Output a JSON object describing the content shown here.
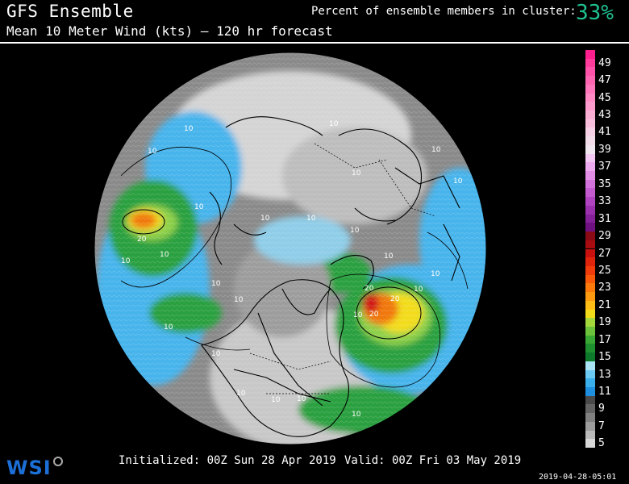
{
  "header": {
    "title": "GFS Ensemble",
    "subtitle": "Mean 10 Meter Wind (kts) — 120 hr forecast",
    "cluster_label": "Percent of ensemble members in cluster:",
    "cluster_value": "33%"
  },
  "footer": {
    "initialized": "Initialized: 00Z Sun 28 Apr 2019",
    "valid": "Valid: 00Z Fri 03 May 2019",
    "logo": "WSI",
    "timestamp": "2019-04-28-05:01"
  },
  "legend": {
    "unit": "kts",
    "steps": [
      {
        "value": 50,
        "label": "",
        "color": "#ff1f8e"
      },
      {
        "value": 49,
        "label": "49",
        "color": "#ff3c9c"
      },
      {
        "value": 48,
        "label": "",
        "color": "#ff52a8"
      },
      {
        "value": 47,
        "label": "47",
        "color": "#ff66b2"
      },
      {
        "value": 46,
        "label": "",
        "color": "#ff78bc"
      },
      {
        "value": 45,
        "label": "45",
        "color": "#ff8ac4"
      },
      {
        "value": 44,
        "label": "",
        "color": "#fd9ccc"
      },
      {
        "value": 43,
        "label": "43",
        "color": "#fbaed4"
      },
      {
        "value": 42,
        "label": "",
        "color": "#f8bfdc"
      },
      {
        "value": 41,
        "label": "41",
        "color": "#f6d0e4"
      },
      {
        "value": 40,
        "label": "",
        "color": "#f2dcea"
      },
      {
        "value": 39,
        "label": "39",
        "color": "#f0e6f0"
      },
      {
        "value": 38,
        "label": "",
        "color": "#f3c8f3"
      },
      {
        "value": 37,
        "label": "37",
        "color": "#eeaaee"
      },
      {
        "value": 36,
        "label": "",
        "color": "#e38ee6"
      },
      {
        "value": 35,
        "label": "35",
        "color": "#d472dc"
      },
      {
        "value": 34,
        "label": "",
        "color": "#c45ad0"
      },
      {
        "value": 33,
        "label": "33",
        "color": "#b044c0"
      },
      {
        "value": 32,
        "label": "",
        "color": "#9a30ac"
      },
      {
        "value": 31,
        "label": "31",
        "color": "#842098"
      },
      {
        "value": 30,
        "label": "",
        "color": "#6e1282"
      },
      {
        "value": 29,
        "label": "29",
        "color": "#8a0a16"
      },
      {
        "value": 28,
        "label": "",
        "color": "#a80c10"
      },
      {
        "value": 27,
        "label": "27",
        "color": "#c8100e"
      },
      {
        "value": 26,
        "label": "",
        "color": "#e0240c"
      },
      {
        "value": 25,
        "label": "25",
        "color": "#f03c0a"
      },
      {
        "value": 24,
        "label": "",
        "color": "#f85a0a"
      },
      {
        "value": 23,
        "label": "23",
        "color": "#fc7a0c"
      },
      {
        "value": 22,
        "label": "",
        "color": "#fe9a10"
      },
      {
        "value": 21,
        "label": "21",
        "color": "#ffbc14"
      },
      {
        "value": 20,
        "label": "",
        "color": "#f2dc1a"
      },
      {
        "value": 19,
        "label": "19",
        "color": "#a4d83a"
      },
      {
        "value": 18,
        "label": "",
        "color": "#6cc23a"
      },
      {
        "value": 17,
        "label": "17",
        "color": "#3aa834"
      },
      {
        "value": 16,
        "label": "",
        "color": "#1e9030"
      },
      {
        "value": 15,
        "label": "15",
        "color": "#0c7a2a"
      },
      {
        "value": 14,
        "label": "",
        "color": "#a8e4f4"
      },
      {
        "value": 13,
        "label": "13",
        "color": "#6ccaf2"
      },
      {
        "value": 12,
        "label": "",
        "color": "#3aaeea"
      },
      {
        "value": 11,
        "label": "11",
        "color": "#1e8ede"
      },
      {
        "value": 10,
        "label": "",
        "color": "#4a4a4a"
      },
      {
        "value": 9,
        "label": "9",
        "color": "#646464"
      },
      {
        "value": 8,
        "label": "",
        "color": "#808080"
      },
      {
        "value": 7,
        "label": "7",
        "color": "#9c9c9c"
      },
      {
        "value": 6,
        "label": "",
        "color": "#bababa"
      },
      {
        "value": 5,
        "label": "5",
        "color": "#d8d8d8"
      }
    ]
  },
  "map": {
    "projection": "north-polar-stereographic",
    "colors": {
      "calm": "#d4d4d4",
      "light": "#8a8a8a",
      "blue": "#46b4ec",
      "green": "#2aa040",
      "lightgreen": "#8ed04a",
      "yellow": "#f2dc1a",
      "orange": "#f07810",
      "red": "#d01818",
      "borders": "#000000"
    },
    "contour_labels": [
      "10",
      "10",
      "10",
      "10",
      "10",
      "10",
      "10",
      "10",
      "10",
      "10",
      "10",
      "10",
      "10",
      "10",
      "10",
      "10",
      "10",
      "10",
      "10",
      "10",
      "10",
      "10",
      "10",
      "10",
      "20",
      "20",
      "20",
      "20"
    ]
  }
}
